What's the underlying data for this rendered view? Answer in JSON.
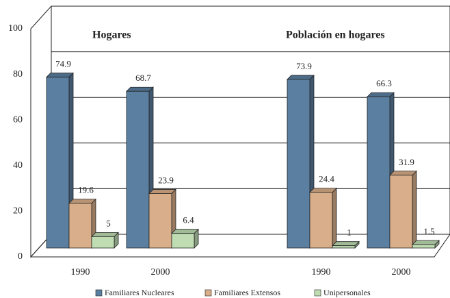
{
  "chart_data": {
    "type": "bar3d",
    "annotations": [
      "Hogares",
      "Población en hogares"
    ],
    "categories": [
      "1990",
      "2000",
      "1990",
      "2000"
    ],
    "series": [
      {
        "name": "Familiares Nucleares",
        "color": "#5b7fa0",
        "values": [
          74.9,
          68.7,
          73.9,
          66.3
        ]
      },
      {
        "name": "Familiares Extensos",
        "color": "#d9ae8a",
        "values": [
          19.6,
          23.9,
          24.4,
          31.9
        ]
      },
      {
        "name": "Unipersonales",
        "color": "#bfdcb2",
        "values": [
          5,
          6.4,
          1,
          1.5
        ]
      }
    ],
    "ylim": [
      0,
      100
    ],
    "yticks": [
      0,
      20,
      40,
      60,
      80,
      100
    ],
    "grid": true
  }
}
